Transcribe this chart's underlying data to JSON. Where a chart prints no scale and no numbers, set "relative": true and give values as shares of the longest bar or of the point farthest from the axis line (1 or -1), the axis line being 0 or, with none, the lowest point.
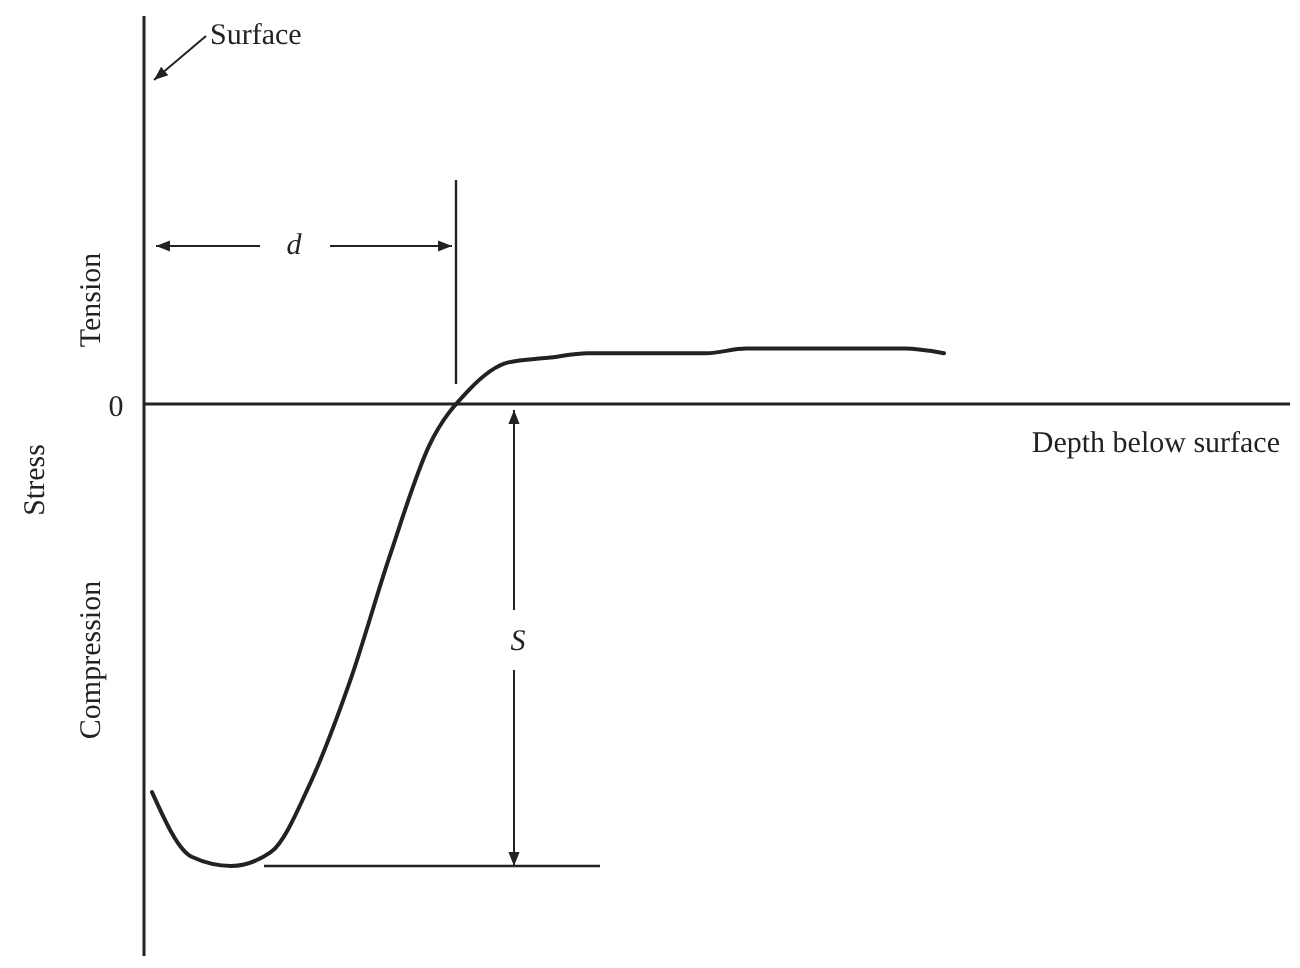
{
  "chart_data": {
    "type": "line",
    "relative": true,
    "xlabel": "Depth below surface",
    "ylabel": "Stress",
    "annotations": [
      "Surface",
      "Tension",
      "Compression",
      "0",
      "d",
      "S"
    ],
    "categories": [
      null,
      null,
      null,
      null,
      null,
      null,
      null,
      null,
      null,
      null,
      null,
      null,
      null,
      null,
      null,
      null,
      null,
      null,
      null,
      null,
      null
    ],
    "series": [
      {
        "color": "#222222",
        "values": [
          -0.84,
          -0.98,
          -1,
          -0.97,
          -0.82,
          -0.6,
          -0.33,
          -0.09,
          0.03,
          0.09,
          0.1,
          0.11,
          0.11,
          0.11,
          0.11,
          0.12,
          0.12,
          0.12,
          0.12,
          0.12,
          0.11
        ]
      }
    ]
  }
}
